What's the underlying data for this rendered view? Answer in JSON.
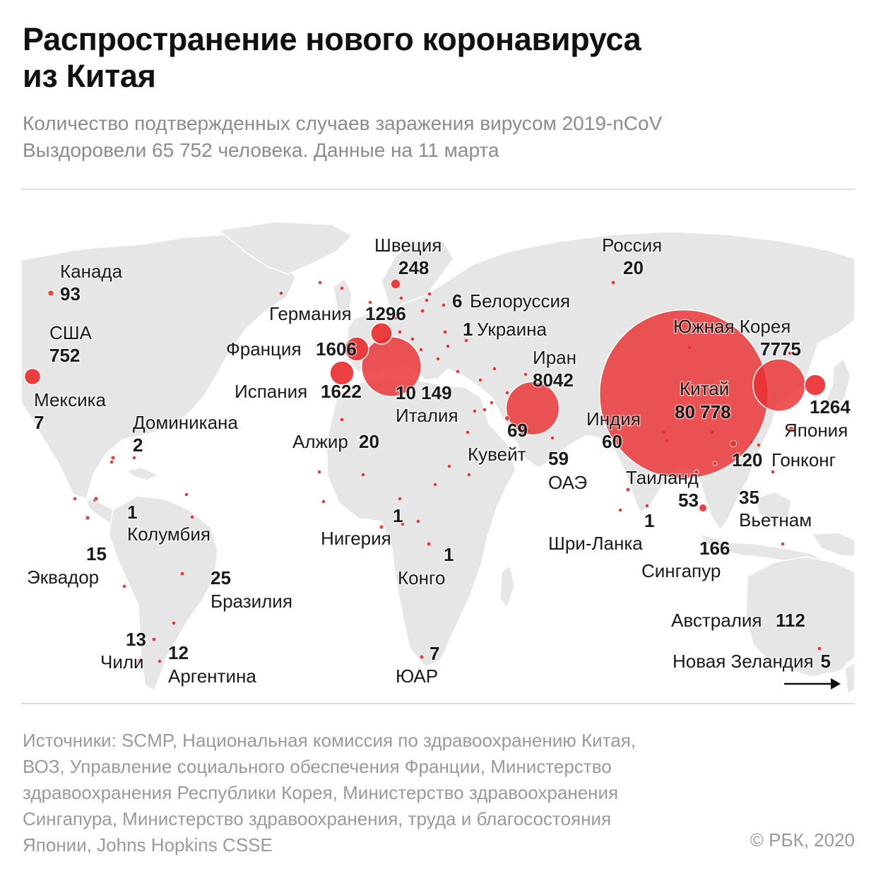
{
  "header": {
    "title_lines": [
      "Распространение нового коронавируса",
      "из Китая"
    ],
    "subtitle_lines": [
      "Количество подтвержденных случаев заражения вирусом 2019-nCoV",
      "Выздоровели 65 752 человека. Данные на 11 марта"
    ]
  },
  "colors": {
    "bubble": "#ea2f32",
    "land": "#e6e6e6",
    "border": "#ffffff",
    "text": "#1a1a1a",
    "muted": "#9a9a9a"
  },
  "countries": [
    {
      "id": "canada",
      "name": "Канада",
      "value": "93",
      "cases": 93
    },
    {
      "id": "usa",
      "name": "США",
      "value": "752",
      "cases": 752
    },
    {
      "id": "mexico",
      "name": "Мексика",
      "value": "7",
      "cases": 7
    },
    {
      "id": "dominican",
      "name": "Доминикана",
      "value": "2",
      "cases": 2
    },
    {
      "id": "colombia",
      "name": "Колумбия",
      "value": "1",
      "cases": 1
    },
    {
      "id": "ecuador",
      "name": "Эквадор",
      "value": "15",
      "cases": 15
    },
    {
      "id": "brazil",
      "name": "Бразилия",
      "value": "25",
      "cases": 25
    },
    {
      "id": "chile",
      "name": "Чили",
      "value": "13",
      "cases": 13
    },
    {
      "id": "argentina",
      "name": "Аргентина",
      "value": "12",
      "cases": 12
    },
    {
      "id": "sweden",
      "name": "Швеция",
      "value": "248",
      "cases": 248
    },
    {
      "id": "germany",
      "name": "Германия",
      "value": "1296",
      "cases": 1296
    },
    {
      "id": "belarus",
      "name": "Белоруссия",
      "value": "6",
      "cases": 6
    },
    {
      "id": "ukraine",
      "name": "Украина",
      "value": "1",
      "cases": 1
    },
    {
      "id": "france",
      "name": "Франция",
      "value": "1606",
      "cases": 1606
    },
    {
      "id": "spain",
      "name": "Испания",
      "value": "1622",
      "cases": 1622
    },
    {
      "id": "italy",
      "name": "Италия",
      "value": "10 149",
      "cases": 10149
    },
    {
      "id": "algeria",
      "name": "Алжир",
      "value": "20",
      "cases": 20
    },
    {
      "id": "nigeria",
      "name": "Нигерия",
      "value": "1",
      "cases": 1
    },
    {
      "id": "congo",
      "name": "Конго",
      "value": "1",
      "cases": 1
    },
    {
      "id": "south-africa",
      "name": "ЮАР",
      "value": "7",
      "cases": 7
    },
    {
      "id": "russia",
      "name": "Россия",
      "value": "20",
      "cases": 20
    },
    {
      "id": "iran",
      "name": "Иран",
      "value": "8042",
      "cases": 8042
    },
    {
      "id": "kuwait",
      "name": "Кувейт",
      "value": "69",
      "cases": 69
    },
    {
      "id": "uae",
      "name": "ОАЭ",
      "value": "59",
      "cases": 59
    },
    {
      "id": "india",
      "name": "Индия",
      "value": "60",
      "cases": 60
    },
    {
      "id": "sri-lanka",
      "name": "Шри-Ланка",
      "value": "1",
      "cases": 1
    },
    {
      "id": "china",
      "name": "Китай",
      "value": "80 778",
      "cases": 80778
    },
    {
      "id": "south-korea",
      "name": "Южная Корея",
      "value": "7775",
      "cases": 7775
    },
    {
      "id": "japan",
      "name": "Япония",
      "value": "1264",
      "cases": 1264
    },
    {
      "id": "hong-kong",
      "name": "Гонконг",
      "value": "120",
      "cases": 120
    },
    {
      "id": "thailand",
      "name": "Таиланд",
      "value": "53",
      "cases": 53
    },
    {
      "id": "vietnam",
      "name": "Вьетнам",
      "value": "35",
      "cases": 35
    },
    {
      "id": "singapore",
      "name": "Сингапур",
      "value": "166",
      "cases": 166
    },
    {
      "id": "australia",
      "name": "Австралия",
      "value": "112",
      "cases": 112
    },
    {
      "id": "new-zealand",
      "name": "Новая Зеландия",
      "value": "5",
      "cases": 5
    }
  ],
  "footer": {
    "source_lines": [
      "Источники: SCMP, Национальная комиссия по здравоохранению Китая,",
      "ВОЗ, Управление социального обеспечения Франции, Министерство",
      "здравоохранения Республики Корея, Министерство здравоохранения",
      "Сингапура, Министерство здравоохранения, труда и благосостояния",
      "Японии, Johns Hopkins CSSE"
    ],
    "copyright": "© РБК, 2020"
  }
}
